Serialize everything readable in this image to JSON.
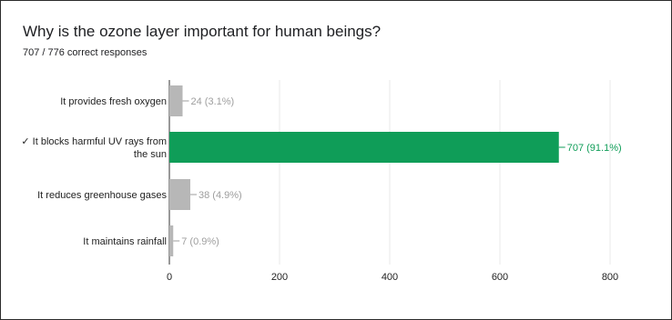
{
  "question": {
    "title": "Why is the ozone layer important for human beings?",
    "summary": "707 / 776 correct responses"
  },
  "colors": {
    "correct": "#0f9d58",
    "incorrect": "#b7b7b7",
    "grid": "#e8e8e8",
    "axis": "#333333",
    "label": "#222222",
    "value_label_incorrect": "#9e9e9e"
  },
  "chart_data": {
    "type": "bar",
    "orientation": "horizontal",
    "grid": true,
    "legend": "none",
    "xlim": [
      0,
      800
    ],
    "ticks": [
      0,
      200,
      400,
      600,
      800
    ],
    "categories": [
      "It provides fresh oxygen",
      "It blocks harmful UV rays from the sun",
      "It reduces greenhouse gases",
      "It maintains rainfall"
    ],
    "category_lines": [
      [
        "It provides fresh oxygen"
      ],
      [
        "✓ It blocks harmful UV rays from",
        "the sun"
      ],
      [
        "It reduces greenhouse gases"
      ],
      [
        "It maintains rainfall"
      ]
    ],
    "values": [
      24,
      707,
      38,
      7
    ],
    "percents": [
      "3.1%",
      "91.1%",
      "4.9%",
      "0.9%"
    ],
    "correct": [
      false,
      true,
      false,
      false
    ],
    "value_labels": [
      "24 (3.1%)",
      "707 (91.1%)",
      "38 (4.9%)",
      "7 (0.9%)"
    ]
  }
}
